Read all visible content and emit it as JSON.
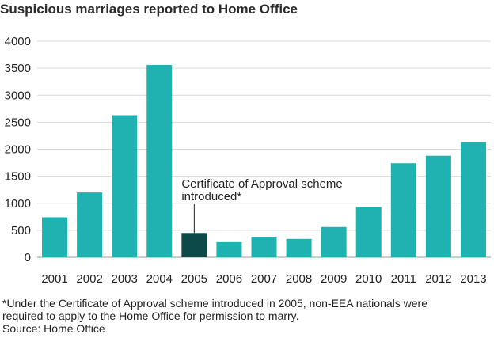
{
  "title": "Suspicious marriages reported to Home Office",
  "chart_data": {
    "type": "bar",
    "title": "Suspicious marriages reported to Home Office",
    "xlabel": "",
    "ylabel": "",
    "categories": [
      "2001",
      "2002",
      "2003",
      "2004",
      "2005",
      "2006",
      "2007",
      "2008",
      "2009",
      "2010",
      "2011",
      "2012",
      "2013"
    ],
    "values": [
      740,
      1200,
      2630,
      3560,
      450,
      280,
      380,
      340,
      560,
      930,
      1740,
      1880,
      2130
    ],
    "ylim": [
      0,
      4000
    ],
    "yticks": [
      0,
      500,
      1000,
      1500,
      2000,
      2500,
      3000,
      3500,
      4000
    ],
    "grid": true,
    "bar_color": "#1fb2b0",
    "highlight_color": "#0b4a49",
    "highlight_category": "2005",
    "annotation": {
      "target": "2005",
      "lines": [
        "Certificate of Approval scheme",
        "introduced*"
      ]
    }
  },
  "footnote": {
    "lines": [
      "*Under the Certificate of Approval scheme introduced in 2005, non-EEA nationals were",
      "required to apply to the Home Office for permission to marry."
    ],
    "source": "Source: Home Office"
  }
}
